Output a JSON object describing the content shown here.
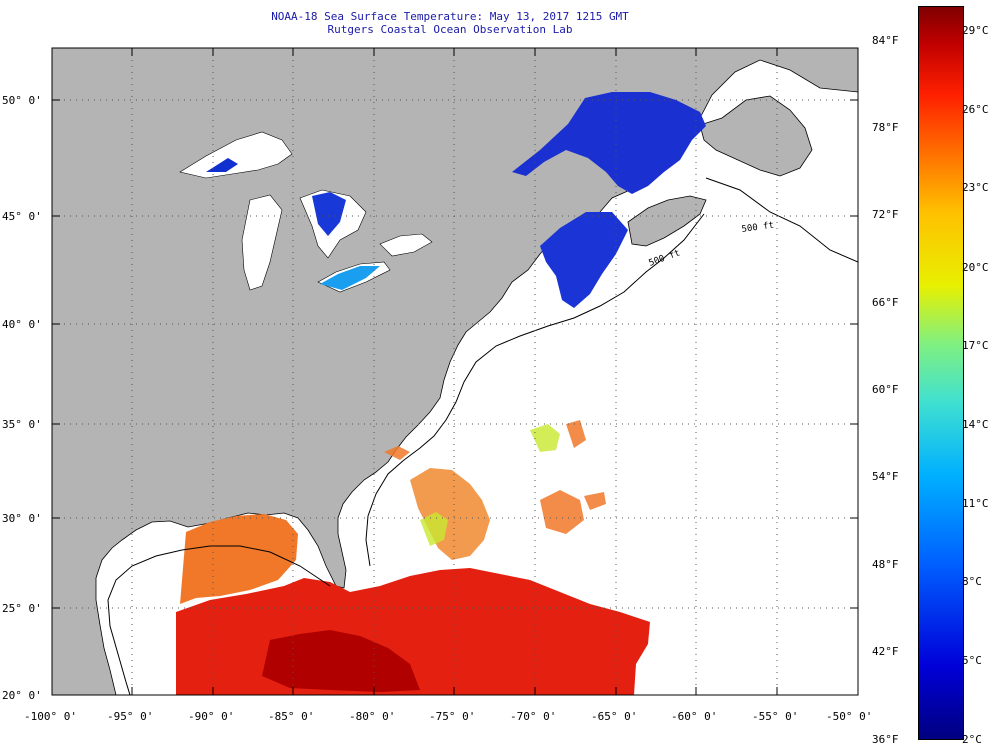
{
  "title": {
    "line1": "NOAA-18 Sea Surface Temperature:  May 13, 2017 1215 GMT",
    "line2": "Rutgers Coastal Ocean Observation Lab"
  },
  "map": {
    "lat_labels": [
      "50° 0'",
      "45° 0'",
      "40° 0'",
      "35° 0'",
      "30° 0'",
      "25° 0'",
      "20° 0'"
    ],
    "lon_labels": [
      "-100° 0'",
      "-95° 0'",
      "-90° 0'",
      "-85° 0'",
      "-80° 0'",
      "-75° 0'",
      "-70° 0'",
      "-65° 0'",
      "-60° 0'",
      "-55° 0'",
      "-50° 0'"
    ],
    "contour_labels": [
      "500 ft",
      "500 ft"
    ],
    "colors": {
      "land": "#b4b4b4",
      "water_nodata": "#ffffff",
      "grid": "#000000"
    }
  },
  "colorbar": {
    "fahrenheit_labels": [
      "84°F",
      "78°F",
      "72°F",
      "66°F",
      "60°F",
      "54°F",
      "48°F",
      "42°F",
      "36°F"
    ],
    "celsius_labels": [
      "29°C",
      "26°C",
      "23°C",
      "20°C",
      "17°C",
      "14°C",
      "11°C",
      "8°C",
      "5°C",
      "2°C"
    ]
  }
}
